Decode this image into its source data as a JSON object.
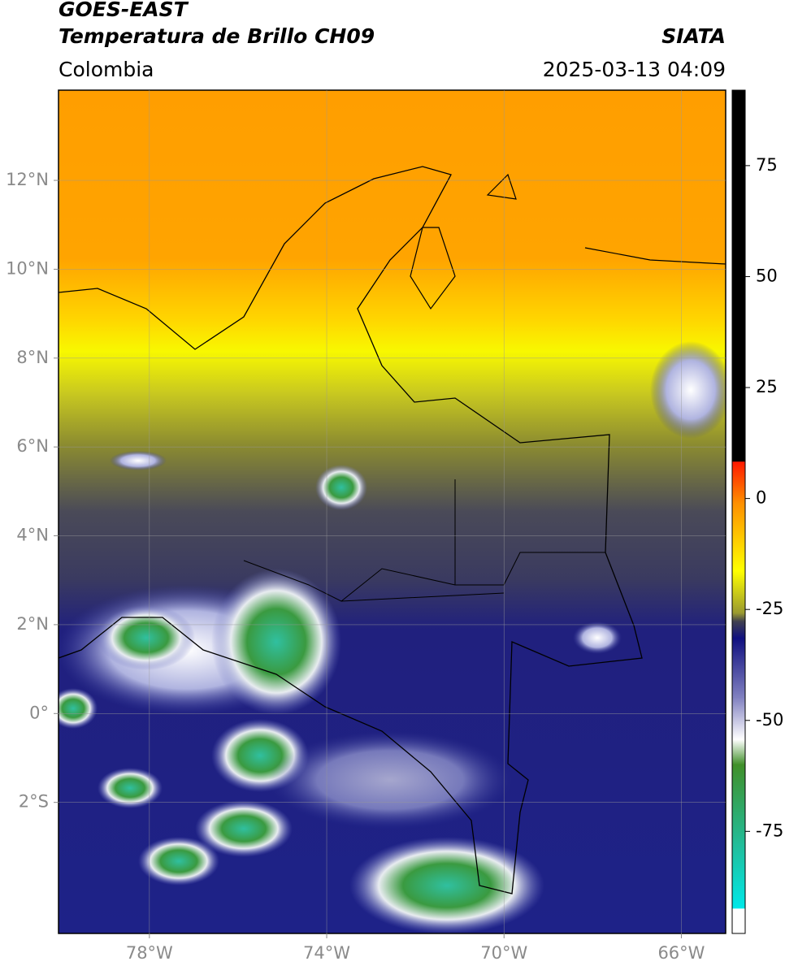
{
  "header": {
    "title": "GOES-EAST",
    "subtitle": "Temperatura de Brillo CH09",
    "source": "SIATA",
    "region": "Colombia",
    "datetime": "2025-03-13 04:09"
  },
  "map": {
    "xlim": [
      -80.05,
      -65
    ],
    "ylim": [
      -4.95,
      14.03
    ],
    "xticks": [
      {
        "value": -78,
        "label": "78°W"
      },
      {
        "value": -74,
        "label": "74°W"
      },
      {
        "value": -70,
        "label": "70°W"
      },
      {
        "value": -66,
        "label": "66°W"
      }
    ],
    "yticks": [
      {
        "value": 12,
        "label": "12°N"
      },
      {
        "value": 10,
        "label": "10°N"
      },
      {
        "value": 8,
        "label": "8°N"
      },
      {
        "value": 6,
        "label": "6°N"
      },
      {
        "value": 4,
        "label": "4°N"
      },
      {
        "value": 2,
        "label": "2°N"
      },
      {
        "value": 0,
        "label": "0°"
      },
      {
        "value": -2,
        "label": "2°S"
      }
    ],
    "grid": true
  },
  "colorbar": {
    "lim": [
      -98,
      92
    ],
    "ticks": [
      75,
      50,
      25,
      0,
      -25,
      -50,
      -75
    ]
  }
}
